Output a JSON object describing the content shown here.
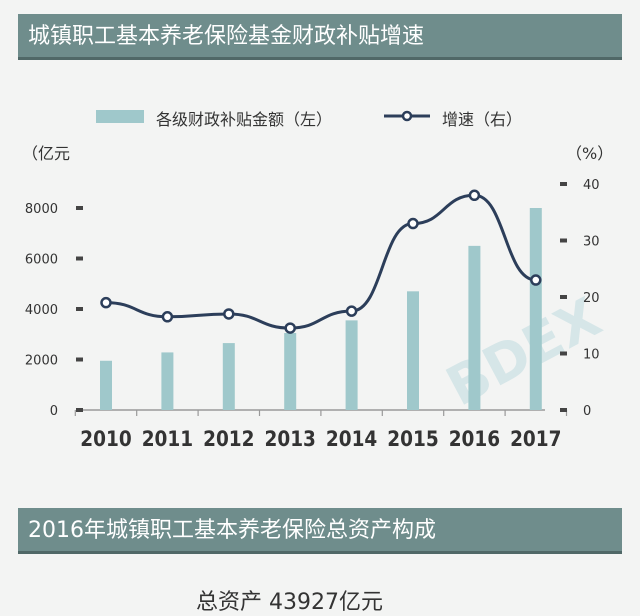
{
  "header": {
    "title": "城镇职工基本养老保险基金财政补贴增速"
  },
  "legend": {
    "bar_label": "各级财政补贴金额（左）",
    "line_label": "增速（右）"
  },
  "units": {
    "left": "（亿元",
    "right": "（%）"
  },
  "chart_data": {
    "type": "bar+line",
    "title": "城镇职工基本养老保险基金财政补贴增速",
    "categories": [
      "2010",
      "2011",
      "2012",
      "2013",
      "2014",
      "2015",
      "2016",
      "2017"
    ],
    "series": [
      {
        "name": "各级财政补贴金额（左）",
        "type": "bar",
        "axis": "left",
        "values": [
          1950,
          2280,
          2650,
          3050,
          3550,
          4700,
          6500,
          8000
        ]
      },
      {
        "name": "增速（右）",
        "type": "line",
        "axis": "right",
        "values": [
          19,
          16.5,
          17,
          14.5,
          17.5,
          33,
          38,
          23
        ]
      }
    ],
    "left_axis": {
      "min": 0,
      "max": 8000,
      "ticks": [
        0,
        2000,
        4000,
        6000,
        8000
      ]
    },
    "right_axis": {
      "min": 0,
      "max": 40,
      "ticks": [
        0,
        10,
        20,
        30,
        40
      ]
    },
    "colors": {
      "bar": "#9fc8cb",
      "line": "#2c3e5a"
    }
  },
  "watermark": "BDEX",
  "section2": {
    "title": "2016年城镇职工基本养老保险总资产构成"
  },
  "total": {
    "text": "总资产 43927亿元"
  }
}
